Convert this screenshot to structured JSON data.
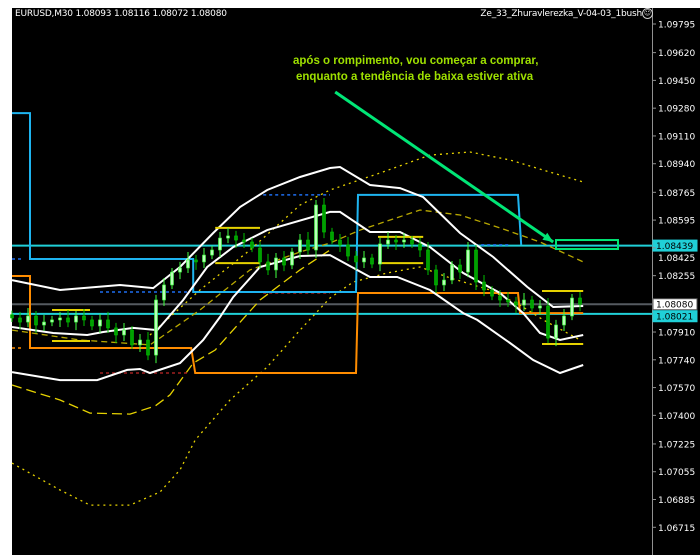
{
  "header": {
    "symbol_info": "EURUSD,M30  1.08093 1.08116 1.08072 1.08080",
    "expert_name": "Ze_33_Zhuravlerezka_V-04-03_1bush",
    "expert_icon": "smiley-face-icon"
  },
  "annotation": {
    "line1": "após o rompimento, vou começar a comprar,",
    "line2": "enquanto a tendência de baixa estiver ativa",
    "arrow_color": "#00e676"
  },
  "colors": {
    "background": "#000000",
    "bull_candle": "#b8ffb8",
    "bear_candle": "#00a000",
    "bands": "#ffffff",
    "step_blue": "#1eb4f0",
    "step_orange": "#ff8c00",
    "levels_cyan": "#20d0d8",
    "bid_line": "#555a60",
    "yellow": "#e6d200"
  },
  "chart_data": {
    "type": "candlestick",
    "symbol": "EURUSD",
    "timeframe": "M30",
    "ohlc_last": {
      "open": 1.08093,
      "high": 1.08116,
      "low": 1.08072,
      "close": 1.0808
    },
    "xlim": [
      0,
      160
    ],
    "ylim": [
      1.06576,
      1.09893
    ],
    "grid": false,
    "y_ticks": [
      "1.09795",
      "1.09620",
      "1.09450",
      "1.09280",
      "1.09110",
      "1.08940",
      "1.08765",
      "1.08595",
      "1.08425",
      "1.08255",
      "1.07910",
      "1.07740",
      "1.07570",
      "1.07400",
      "1.07225",
      "1.07055",
      "1.06885",
      "1.06715"
    ],
    "price_labels": [
      {
        "value": "1.08439",
        "kind": "cyan-level"
      },
      {
        "value": "1.08080",
        "kind": "bid"
      },
      {
        "value": "1.08021",
        "kind": "cyan-level"
      }
    ],
    "closes": [
      1.07996,
      1.07971,
      1.08008,
      1.07953,
      1.07971,
      1.07984,
      1.07996,
      1.07971,
      1.08008,
      1.07984,
      1.07947,
      1.07984,
      1.07935,
      1.07892,
      1.07922,
      1.07831,
      1.07861,
      1.07769,
      1.08106,
      1.08198,
      1.08277,
      1.08302,
      1.08351,
      1.08339,
      1.08381,
      1.08412,
      1.08485,
      1.08498,
      1.08473,
      1.08461,
      1.08424,
      1.08339,
      1.0829,
      1.08363,
      1.0832,
      1.084,
      1.08473,
      1.08412,
      1.08687,
      1.08522,
      1.08473,
      1.08443,
      1.08375,
      1.08339,
      1.08363,
      1.08326,
      1.08449,
      1.08473,
      1.08461,
      1.08473,
      1.08449,
      1.08412,
      1.0829,
      1.08198,
      1.08228,
      1.0832,
      1.08277,
      1.08412,
      1.08216,
      1.08167,
      1.0813,
      1.08106,
      1.08094,
      1.08075,
      1.08106,
      1.08057,
      1.08069,
      1.07873,
      1.07953,
      1.08008,
      1.08118,
      1.0808
    ],
    "bar_step": 2,
    "bands": [
      {
        "role": "upper",
        "points": [
          [
            0,
            1.08228
          ],
          [
            12,
            1.08167
          ],
          [
            27,
            1.08198
          ],
          [
            35.3,
            1.08179
          ],
          [
            42,
            1.08308
          ],
          [
            50.3,
            1.08516
          ],
          [
            57,
            1.08675
          ],
          [
            63.8,
            1.08779
          ],
          [
            72,
            1.08859
          ],
          [
            79.5,
            1.08914
          ],
          [
            82,
            1.0892
          ],
          [
            89.5,
            1.0881
          ],
          [
            97,
            1.08791
          ],
          [
            102.8,
            1.08736
          ],
          [
            112,
            1.08516
          ],
          [
            120.3,
            1.08369
          ],
          [
            128.8,
            1.08186
          ],
          [
            135.3,
            1.08063
          ],
          [
            142.8,
            1.08069
          ]
        ]
      },
      {
        "role": "middle",
        "points": [
          [
            0,
            1.07941
          ],
          [
            10.3,
            1.07904
          ],
          [
            18.8,
            1.07892
          ],
          [
            22.8,
            1.0791
          ],
          [
            30.3,
            1.07935
          ],
          [
            36.3,
            1.07922
          ],
          [
            42.8,
            1.08106
          ],
          [
            48.8,
            1.08308
          ],
          [
            55.3,
            1.0843
          ],
          [
            63.8,
            1.08534
          ],
          [
            79.5,
            1.08645
          ],
          [
            82,
            1.08645
          ],
          [
            89.5,
            1.08522
          ],
          [
            97,
            1.08522
          ],
          [
            104.5,
            1.0843
          ],
          [
            112.8,
            1.08271
          ],
          [
            122,
            1.08149
          ],
          [
            127.8,
            1.08026
          ],
          [
            132,
            1.07904
          ],
          [
            137,
            1.07861
          ],
          [
            142.8,
            1.07892
          ]
        ]
      },
      {
        "role": "lower",
        "points": [
          [
            0,
            1.07665
          ],
          [
            12,
            1.07616
          ],
          [
            21.3,
            1.07616
          ],
          [
            28.8,
            1.07678
          ],
          [
            32,
            1.07684
          ],
          [
            34.5,
            1.07659
          ],
          [
            42,
            1.0772
          ],
          [
            47.8,
            1.07861
          ],
          [
            52,
            1.08002
          ],
          [
            55.3,
            1.08124
          ],
          [
            62,
            1.08308
          ],
          [
            72,
            1.08375
          ],
          [
            79.5,
            1.08381
          ],
          [
            89.5,
            1.08247
          ],
          [
            96.3,
            1.08247
          ],
          [
            104.5,
            1.08167
          ],
          [
            112.8,
            1.08026
          ],
          [
            116.3,
            1.07984
          ],
          [
            124.5,
            1.07843
          ],
          [
            130.3,
            1.07739
          ],
          [
            137,
            1.07659
          ],
          [
            142.8,
            1.07708
          ]
        ]
      }
    ],
    "moving_averages": [
      {
        "style": "dotted",
        "points": [
          [
            34.5,
            1.07892
          ],
          [
            47,
            1.08167
          ],
          [
            59.5,
            1.08412
          ],
          [
            72,
            1.08687
          ],
          [
            79.5,
            1.08779
          ],
          [
            92,
            1.08883
          ],
          [
            104.5,
            1.08993
          ],
          [
            114.5,
            1.09012
          ],
          [
            124.5,
            1.08963
          ],
          [
            134.5,
            1.08889
          ],
          [
            142.8,
            1.08828
          ]
        ]
      },
      {
        "style": "dashed",
        "points": [
          [
            0,
            1.07922
          ],
          [
            17,
            1.07861
          ],
          [
            34.5,
            1.07831
          ],
          [
            47,
            1.08045
          ],
          [
            59.5,
            1.0829
          ],
          [
            72,
            1.084
          ],
          [
            79.5,
            1.08455
          ],
          [
            87,
            1.08534
          ],
          [
            102,
            1.08657
          ],
          [
            112,
            1.08626
          ],
          [
            122,
            1.08547
          ],
          [
            132,
            1.08461
          ],
          [
            142.8,
            1.08339
          ]
        ]
      },
      {
        "style": "longdash",
        "points": [
          [
            0,
            1.07586
          ],
          [
            12,
            1.07494
          ],
          [
            19.5,
            1.07414
          ],
          [
            29.5,
            1.07408
          ],
          [
            35.8,
            1.07457
          ],
          [
            39.5,
            1.07525
          ],
          [
            45.3,
            1.0772
          ],
          [
            50.8,
            1.078
          ],
          [
            62,
            1.08106
          ],
          [
            72,
            1.0829
          ],
          [
            79.5,
            1.08412
          ]
        ]
      },
      {
        "style": "dotted",
        "points": [
          [
            0,
            1.07108
          ],
          [
            12,
            1.06943
          ],
          [
            19.5,
            1.06851
          ],
          [
            29.5,
            1.06851
          ],
          [
            37,
            1.06931
          ],
          [
            42,
            1.07066
          ],
          [
            45.8,
            1.07249
          ],
          [
            54.5,
            1.07494
          ],
          [
            63.8,
            1.07696
          ],
          [
            72,
            1.07922
          ],
          [
            79.5,
            1.08118
          ],
          [
            85.3,
            1.08216
          ],
          [
            93.8,
            1.08271
          ],
          [
            102,
            1.08308
          ],
          [
            109.5,
            1.08241
          ],
          [
            119.5,
            1.08167
          ],
          [
            127,
            1.08075
          ],
          [
            132.8,
            1.07984
          ],
          [
            142,
            1.07861
          ]
        ]
      }
    ],
    "step_lines": [
      {
        "color": "blue",
        "points": [
          [
            0,
            1.0925
          ],
          [
            4.5,
            1.0925
          ],
          [
            4.5,
            1.08357
          ],
          [
            45.3,
            1.08357
          ],
          [
            45.3,
            1.08155
          ],
          [
            86,
            1.08155
          ],
          [
            86.5,
            1.08749
          ],
          [
            126.5,
            1.08749
          ],
          [
            127.3,
            1.08443
          ]
        ]
      },
      {
        "color": "orange",
        "points": [
          [
            0,
            1.08253
          ],
          [
            4.5,
            1.08253
          ],
          [
            4.5,
            1.07812
          ],
          [
            44.8,
            1.07812
          ],
          [
            45.8,
            1.07659
          ],
          [
            86,
            1.07659
          ],
          [
            86.5,
            1.08149
          ],
          [
            126.5,
            1.08149
          ],
          [
            127,
            1.08026
          ],
          [
            142.8,
            1.08026
          ]
        ]
      }
    ],
    "range_segments": [
      [
        10,
        19.5,
        1.08045
      ],
      [
        10,
        19.5,
        1.07855
      ],
      [
        50.8,
        62,
        1.08547
      ],
      [
        50.8,
        62,
        1.08332
      ],
      [
        91.5,
        102.8,
        1.08492
      ],
      [
        91.5,
        102.8,
        1.08332
      ],
      [
        132.5,
        142.8,
        1.08161
      ],
      [
        132.5,
        142.8,
        1.07837
      ]
    ],
    "dotted_levels": [
      {
        "color": "blue",
        "x": [
          22,
          44.5
        ],
        "price": 1.08155
      },
      {
        "color": "blue",
        "x": [
          62.8,
          79.5
        ],
        "price": 1.08749
      },
      {
        "color": "blue",
        "x": [
          115.8,
          124.5
        ],
        "price": 1.08443
      },
      {
        "color": "blue",
        "x": [
          0,
          3
        ],
        "price": 1.08357
      },
      {
        "color": "red",
        "x": [
          22,
          44.5
        ],
        "price": 1.07659
      },
      {
        "color": "red",
        "x": [
          62.8,
          79.5
        ],
        "price": 1.08149
      },
      {
        "color": "orange",
        "x": [
          0,
          3
        ],
        "price": 1.07812
      }
    ],
    "horizontal_lines": [
      {
        "price": 1.08439,
        "color": "cyan"
      },
      {
        "price": 1.0808,
        "color": "gray"
      },
      {
        "price": 1.08021,
        "color": "cyan"
      }
    ],
    "arrow": {
      "from": [
        80.8,
        1.09379
      ],
      "to": [
        135.3,
        1.08461
      ]
    },
    "target_box": {
      "x": [
        136,
        151.5
      ],
      "price": [
        1.08418,
        1.08473
      ]
    }
  }
}
